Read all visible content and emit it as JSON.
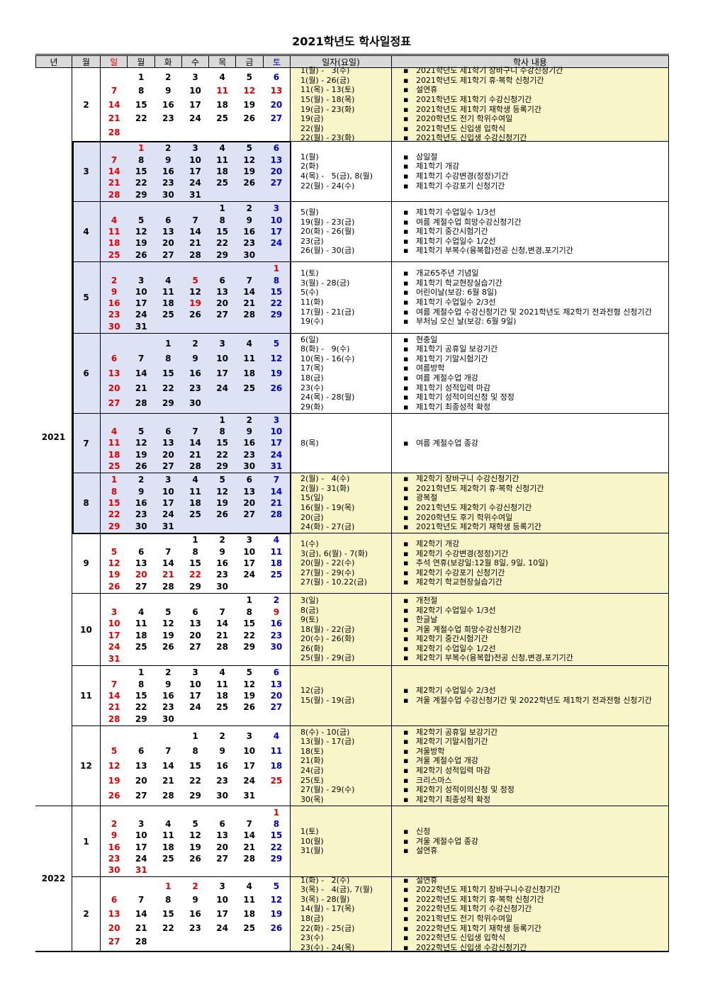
{
  "title": "2021학년도 학사일정표",
  "header": [
    "년",
    "월",
    "일",
    "월",
    "화",
    "수",
    "목",
    "금",
    "토",
    "일자(요일)",
    "학사 내용"
  ],
  "colors": {
    "sunday": "#e00000",
    "saturday": "#0000d0",
    "holiday": "#e00000",
    "header_bg": "#d9d9d9"
  },
  "years": [
    {
      "year": 2021,
      "months": [
        {
          "month": 2,
          "calendar_bg": "#ffffff",
          "notes_bg": "#f8f6c8",
          "holidays": [
            11,
            12,
            13
          ],
          "weeks": [
            [
              null,
              1,
              2,
              3,
              4,
              5,
              6
            ],
            [
              7,
              8,
              9,
              10,
              11,
              12,
              13
            ],
            [
              14,
              15,
              16,
              17,
              18,
              19,
              20
            ],
            [
              21,
              22,
              23,
              24,
              25,
              26,
              27
            ],
            [
              28,
              null,
              null,
              null,
              null,
              null,
              null
            ]
          ],
          "dates": [
            "1(월) -   3(수)",
            "1(월) - 26(금)",
            "11(목) - 13(토)",
            "15(월) - 18(목)",
            "19(금) - 23(화)",
            "19(금)",
            "22(월)",
            "22(월) - 23(화)"
          ],
          "events": [
            "2021학년도 제1학기 장바구니 수강신청기간",
            "2021학년도 제1학기 휴·복학 신청기간",
            "설연휴",
            "2021학년도 제1학기 수강신청기간",
            "2021학년도 제1학기 재학생 등록기간",
            "2020학년도 전기 학위수여일",
            "2021학년도 신입생 입학식",
            "2021학년도 신입생 수강신청기간"
          ]
        },
        {
          "month": 3,
          "calendar_bg": "#dde3f4",
          "notes_bg": "#ffffff",
          "holidays": [
            1
          ],
          "weeks": [
            [
              null,
              1,
              2,
              3,
              4,
              5,
              6
            ],
            [
              7,
              8,
              9,
              10,
              11,
              12,
              13
            ],
            [
              14,
              15,
              16,
              17,
              18,
              19,
              20
            ],
            [
              21,
              22,
              23,
              24,
              25,
              26,
              27
            ],
            [
              28,
              29,
              30,
              31,
              null,
              null,
              null
            ]
          ],
          "dates": [
            "1(월)",
            "2(화)",
            "4(목) -   5(금), 8(월)",
            "22(월) - 24(수)"
          ],
          "events": [
            "삼일절",
            "제1학기 개강",
            "제1학기 수강변경(정정)기간",
            "제1학기 수강포기 신청기간"
          ]
        },
        {
          "month": 4,
          "calendar_bg": "#dde3f4",
          "notes_bg": "#ffffff",
          "holidays": [],
          "weeks": [
            [
              null,
              null,
              null,
              null,
              1,
              2,
              3
            ],
            [
              4,
              5,
              6,
              7,
              8,
              9,
              10
            ],
            [
              11,
              12,
              13,
              14,
              15,
              16,
              17
            ],
            [
              18,
              19,
              20,
              21,
              22,
              23,
              24
            ],
            [
              25,
              26,
              27,
              28,
              29,
              30,
              null
            ]
          ],
          "dates": [
            "5(월)",
            "19(월) - 23(금)",
            "20(화) - 26(월)",
            "23(금)",
            "26(월) - 30(금)"
          ],
          "events": [
            "제1학기 수업일수 1/3선",
            "여름 계절수업 희망수강신청기간",
            "제1학기 중간시험기간",
            "제1학기 수업일수 1/2선",
            "제1학기 부복수(융복합)전공 신청,변경,포기기간"
          ]
        },
        {
          "month": 5,
          "calendar_bg": "#dde3f4",
          "notes_bg": "#ffffff",
          "holidays": [
            1,
            5,
            19
          ],
          "weeks": [
            [
              null,
              null,
              null,
              null,
              null,
              null,
              1
            ],
            [
              2,
              3,
              4,
              5,
              6,
              7,
              8
            ],
            [
              9,
              10,
              11,
              12,
              13,
              14,
              15
            ],
            [
              16,
              17,
              18,
              19,
              20,
              21,
              22
            ],
            [
              23,
              24,
              25,
              26,
              27,
              28,
              29
            ],
            [
              30,
              31,
              null,
              null,
              null,
              null,
              null
            ]
          ],
          "dates": [
            "1(토)",
            "3(월) - 28(금)",
            "5(수)",
            "11(화)",
            "17(월) - 21(금)",
            "19(수)"
          ],
          "events": [
            "개교65주년 기념일",
            "제1학기 학교현장실습기간",
            "어린이날(보강: 6월 8일)",
            "제1학기 수업일수 2/3선",
            "여름 계절수업 수강신청기간 및 2021학년도 제2학기 전과전형 신청기간",
            "부처님 오신 날(보강: 6월 9일)"
          ]
        },
        {
          "month": 6,
          "calendar_bg": "#dde3f4",
          "notes_bg": "#ffffff",
          "holidays": [
            6
          ],
          "weeks": [
            [
              null,
              null,
              1,
              2,
              3,
              4,
              5
            ],
            [
              6,
              7,
              8,
              9,
              10,
              11,
              12
            ],
            [
              13,
              14,
              15,
              16,
              17,
              18,
              19
            ],
            [
              20,
              21,
              22,
              23,
              24,
              25,
              26
            ],
            [
              27,
              28,
              29,
              30,
              null,
              null,
              null
            ]
          ],
          "dates": [
            "6(일)",
            "8(화) -   9(수)",
            "10(목) - 16(수)",
            "17(목)",
            "18(금)",
            "23(수)",
            "24(목) - 28(월)",
            "29(화)"
          ],
          "events": [
            "현충일",
            "제1학기 공휴일 보강기간",
            "제1학기 기말시험기간",
            "여름방학",
            "여름 계절수업 개강",
            "제1학기 성적입력 마감",
            "제1학기 성적이의신청 및 정정",
            "제1학기 최종성적 확정"
          ]
        },
        {
          "month": 7,
          "calendar_bg": "#dde3f4",
          "notes_bg": "#ffffff",
          "holidays": [],
          "weeks": [
            [
              null,
              null,
              null,
              null,
              1,
              2,
              3
            ],
            [
              4,
              5,
              6,
              7,
              8,
              9,
              10
            ],
            [
              11,
              12,
              13,
              14,
              15,
              16,
              17
            ],
            [
              18,
              19,
              20,
              21,
              22,
              23,
              24
            ],
            [
              25,
              26,
              27,
              28,
              29,
              30,
              31
            ]
          ],
          "dates": [
            "8(목)"
          ],
          "events": [
            "여름 계절수업 종강"
          ]
        },
        {
          "month": 8,
          "calendar_bg": "#dde3f4",
          "notes_bg": "#f8f6c8",
          "holidays": [
            15
          ],
          "weeks": [
            [
              1,
              2,
              3,
              4,
              5,
              6,
              7
            ],
            [
              8,
              9,
              10,
              11,
              12,
              13,
              14
            ],
            [
              15,
              16,
              17,
              18,
              19,
              20,
              21
            ],
            [
              22,
              23,
              24,
              25,
              26,
              27,
              28
            ],
            [
              29,
              30,
              31,
              null,
              null,
              null,
              null
            ]
          ],
          "dates": [
            "2(월) -   4(수)",
            "2(월) - 31(화)",
            "15(일)",
            "16(월) - 19(목)",
            "20(금)",
            "24(화) - 27(금)"
          ],
          "events": [
            "제2학기 장바구니 수강신청기간",
            "2021학년도 제2학기 휴·복학 신청기간",
            "광복절",
            "2021학년도 제2학기 수강신청기간",
            "2020학년도 후기 학위수여일",
            "2021학년도 제2학기 재학생 등록기간"
          ]
        },
        {
          "month": 9,
          "calendar_bg": "#ffffff",
          "notes_bg": "#f8f6c8",
          "holidays": [
            20,
            21,
            22
          ],
          "weeks": [
            [
              null,
              null,
              null,
              1,
              2,
              3,
              4
            ],
            [
              5,
              6,
              7,
              8,
              9,
              10,
              11
            ],
            [
              12,
              13,
              14,
              15,
              16,
              17,
              18
            ],
            [
              19,
              20,
              21,
              22,
              23,
              24,
              25
            ],
            [
              26,
              27,
              28,
              29,
              30,
              null,
              null
            ]
          ],
          "dates": [
            "1(수)",
            "3(금), 6(월) - 7(화)",
            "20(월) - 22(수)",
            "27(월) - 29(수)",
            "27(월) - 10.22(금)"
          ],
          "events": [
            "제2학기 개강",
            "제2학기 수강변경(정정)기간",
            "추석 연휴(보강일:12월 8일, 9일, 10일)",
            "제2학기 수강포기 신청기간",
            "제2학기 학교현장실습기간"
          ]
        },
        {
          "month": 10,
          "calendar_bg": "#ffffff",
          "notes_bg": "#f8f6c8",
          "holidays": [
            3,
            9
          ],
          "weeks": [
            [
              null,
              null,
              null,
              null,
              null,
              1,
              2
            ],
            [
              3,
              4,
              5,
              6,
              7,
              8,
              9
            ],
            [
              10,
              11,
              12,
              13,
              14,
              15,
              16
            ],
            [
              17,
              18,
              19,
              20,
              21,
              22,
              23
            ],
            [
              24,
              25,
              26,
              27,
              28,
              29,
              30
            ],
            [
              31,
              null,
              null,
              null,
              null,
              null,
              null
            ]
          ],
          "dates": [
            "3(일)",
            "8(금)",
            "9(토)",
            "18(월) - 22(금)",
            "20(수) - 26(화)",
            "26(화)",
            "25(월) - 29(금)"
          ],
          "events": [
            "개천절",
            "제2학기 수업일수 1/3선",
            "한글날",
            "겨울 계절수업 희망수강신청기간",
            "제2학기 중간시험기간",
            "제2학기 수업일수 1/2선",
            "제2학기 부복수(융복합)전공 신청,변경,포기기간"
          ]
        },
        {
          "month": 11,
          "calendar_bg": "#ffffff",
          "notes_bg": "#f8f6c8",
          "holidays": [],
          "weeks": [
            [
              null,
              1,
              2,
              3,
              4,
              5,
              6
            ],
            [
              7,
              8,
              9,
              10,
              11,
              12,
              13
            ],
            [
              14,
              15,
              16,
              17,
              18,
              19,
              20
            ],
            [
              21,
              22,
              23,
              24,
              25,
              26,
              27
            ],
            [
              28,
              29,
              30,
              null,
              null,
              null,
              null
            ]
          ],
          "dates": [
            "12(금)",
            "15(월) - 19(금)"
          ],
          "events": [
            "제2학기 수업일수 2/3선",
            "겨울 계절수업 수강신청기간 및 2022학년도 제1학기 전과전형 신청기간"
          ]
        },
        {
          "month": 12,
          "calendar_bg": "#ffffff",
          "notes_bg": "#f8f6c8",
          "holidays": [
            25
          ],
          "weeks": [
            [
              null,
              null,
              null,
              1,
              2,
              3,
              4
            ],
            [
              5,
              6,
              7,
              8,
              9,
              10,
              11
            ],
            [
              12,
              13,
              14,
              15,
              16,
              17,
              18
            ],
            [
              19,
              20,
              21,
              22,
              23,
              24,
              25
            ],
            [
              26,
              27,
              28,
              29,
              30,
              31,
              null
            ]
          ],
          "dates": [
            "8(수) - 10(금)",
            "13(월) - 17(금)",
            "18(토)",
            "21(화)",
            "24(금)",
            "25(토)",
            "27(월) - 29(수)",
            "30(목)"
          ],
          "events": [
            "제2학기 공휴일 보강기간",
            "제2학기 기말시험기간",
            "겨울방학",
            "겨울 계절수업 개강",
            "제2학기 성적입력 마감",
            "크리스마스",
            "제2학기 성적이의신청 및 정정",
            "제2학기 최종성적 확정"
          ]
        }
      ]
    },
    {
      "year": 2022,
      "months": [
        {
          "month": 1,
          "calendar_bg": "#ffffff",
          "notes_bg": "#f8f6c8",
          "holidays": [
            1,
            31
          ],
          "weeks": [
            [
              null,
              null,
              null,
              null,
              null,
              null,
              1
            ],
            [
              2,
              3,
              4,
              5,
              6,
              7,
              8
            ],
            [
              9,
              10,
              11,
              12,
              13,
              14,
              15
            ],
            [
              16,
              17,
              18,
              19,
              20,
              21,
              22
            ],
            [
              23,
              24,
              25,
              26,
              27,
              28,
              29
            ],
            [
              30,
              31,
              null,
              null,
              null,
              null,
              null
            ]
          ],
          "dates": [
            "1(토)",
            "10(월)",
            "31(월)"
          ],
          "events": [
            "신정",
            "겨울 계절수업 종강",
            "설연휴"
          ]
        },
        {
          "month": 2,
          "calendar_bg": "#ffffff",
          "notes_bg": "#f8f6c8",
          "holidays": [
            1,
            2
          ],
          "weeks": [
            [
              null,
              null,
              1,
              2,
              3,
              4,
              5
            ],
            [
              6,
              7,
              8,
              9,
              10,
              11,
              12
            ],
            [
              13,
              14,
              15,
              16,
              17,
              18,
              19
            ],
            [
              20,
              21,
              22,
              23,
              24,
              25,
              26
            ],
            [
              27,
              28,
              null,
              null,
              null,
              null,
              null
            ]
          ],
          "dates": [
            "1(화) -   2(수)",
            "3(목) -   4(금), 7(월)",
            "3(목) - 28(월)",
            "14(월) - 17(목)",
            "18(금)",
            "22(화) - 25(금)",
            "23(수)",
            "23(수) - 24(목)"
          ],
          "events": [
            "설연휴",
            "2022학년도 제1학기 장바구니수강신청기간",
            "2022학년도 제1학기 휴·복학 신청기간",
            "2022학년도 제1학기 수강신청기간",
            "2021학년도 전기 학위수여일",
            "2022학년도 제1학기 재학생 등록기간",
            "2022학년도 신입생 입학식",
            "2022학년도 신입생 수강신청기간"
          ]
        }
      ]
    }
  ]
}
